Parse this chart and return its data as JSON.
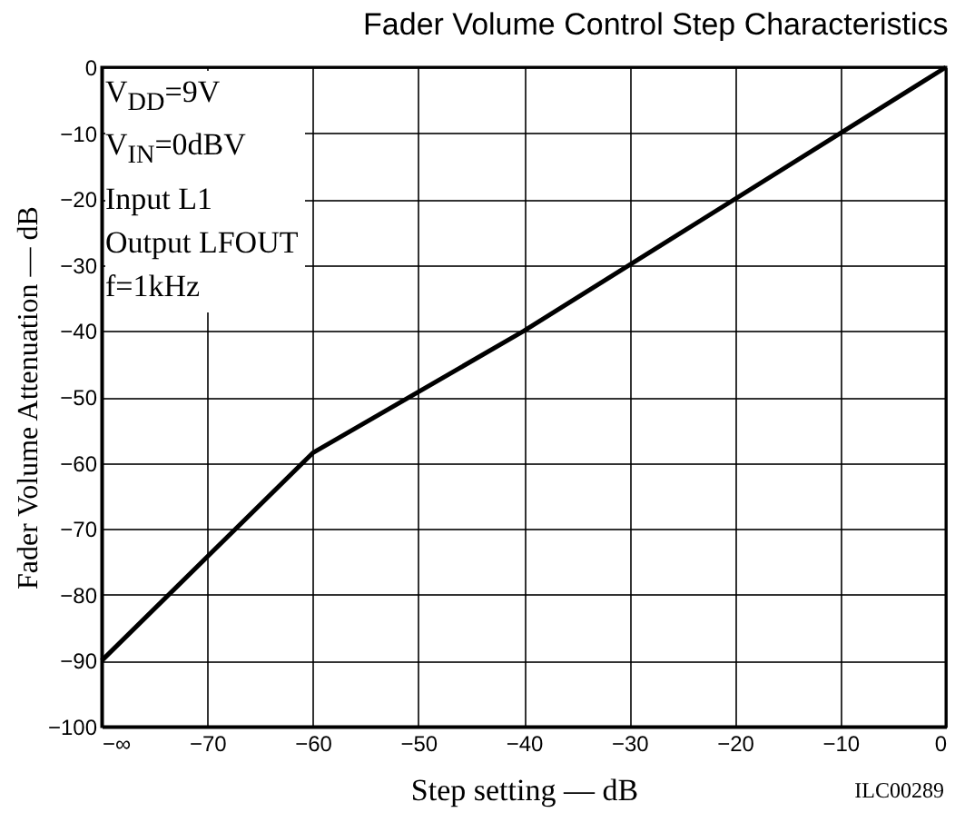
{
  "chart_data": {
    "type": "line",
    "title": "Fader Volume Control Step Characteristics",
    "xlabel": "Step setting — dB",
    "ylabel": "Fader Volume Attenuation — dB",
    "x": [
      -80,
      -60,
      -40,
      0
    ],
    "series": [
      {
        "color": "#000000",
        "values": [
          -90,
          -58.5,
          -40,
          0
        ]
      }
    ],
    "xlim": [
      -80,
      0
    ],
    "xticks": [
      {
        "value": -80,
        "label": "−∞"
      },
      -70,
      -60,
      -50,
      -40,
      -30,
      -20,
      -10,
      0
    ],
    "ylim": [
      -100,
      0
    ],
    "yticks": [
      -100,
      -90,
      -80,
      -70,
      -60,
      -50,
      -40,
      -30,
      -20,
      -10,
      0
    ],
    "grid": true,
    "marker": "none",
    "line_style": "solid",
    "annotations": [
      "V$_{DD}$=9V",
      "V$_{IN}$=0dBV",
      "Input L1",
      "Output LFOUT",
      "f=1kHz",
      "ILC00289"
    ]
  }
}
